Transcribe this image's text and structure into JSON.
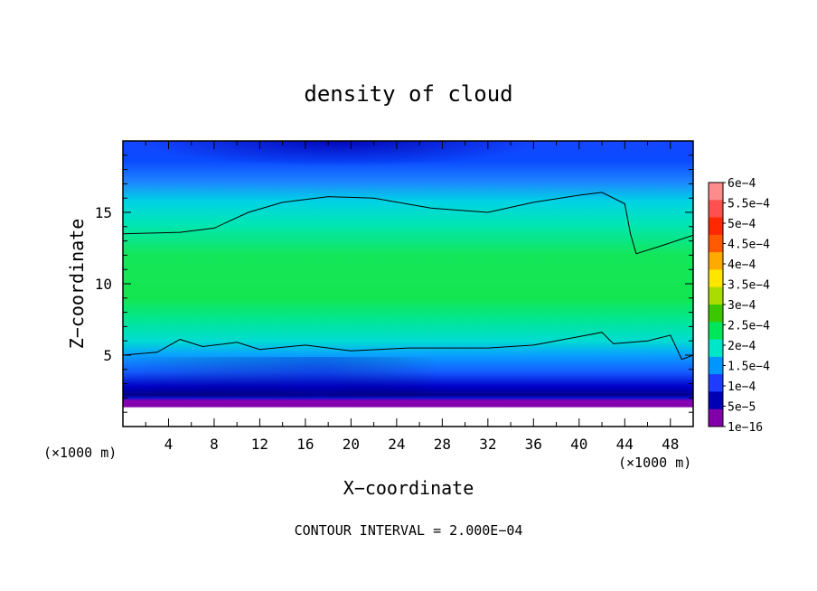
{
  "chart_data": {
    "type": "heatmap",
    "title": "density of cloud",
    "xlabel": "X−coordinate",
    "ylabel": "Z−coordinate",
    "x_unit_left": "(×1000 m)",
    "x_unit_right": "(×1000 m)",
    "footer": "CONTOUR INTERVAL = 2.000E−04",
    "xlim": [
      0,
      50
    ],
    "ylim": [
      0,
      20
    ],
    "x_ticks": [
      4,
      8,
      12,
      16,
      20,
      24,
      28,
      32,
      36,
      40,
      44,
      48
    ],
    "x_tick_labels": [
      "4",
      "8",
      "12",
      "16",
      "20",
      "24",
      "28",
      "32",
      "36",
      "40",
      "44",
      "48"
    ],
    "y_ticks": [
      5,
      10,
      15
    ],
    "y_tick_labels": [
      "5",
      "10",
      "15"
    ],
    "colorbar": {
      "labels": [
        "6e−4",
        "5.5e−4",
        "5e−4",
        "4.5e−4",
        "4e−4",
        "3.5e−4",
        "3e−4",
        "2.5e−4",
        "2e−4",
        "1.5e−4",
        "1e−4",
        "5e−5",
        "1e−16"
      ],
      "colors": [
        "#ff8c8c",
        "#ff5050",
        "#ff2800",
        "#ff5a00",
        "#ffaa00",
        "#ffe600",
        "#aadc00",
        "#3cc800",
        "#00e65a",
        "#00e6c8",
        "#0096ff",
        "#1e3cff",
        "#0000b4",
        "#8200aa"
      ]
    },
    "contour_upper_z_at_x": [
      [
        0,
        13.5
      ],
      [
        5,
        13.6
      ],
      [
        8,
        13.9
      ],
      [
        11,
        15.0
      ],
      [
        14,
        15.7
      ],
      [
        18,
        16.1
      ],
      [
        22,
        16.0
      ],
      [
        27,
        15.3
      ],
      [
        32,
        15.0
      ],
      [
        36,
        15.7
      ],
      [
        40,
        16.2
      ],
      [
        42,
        16.4
      ],
      [
        44,
        15.6
      ],
      [
        44.5,
        13.5
      ],
      [
        45,
        12.1
      ],
      [
        47,
        12.6
      ],
      [
        50,
        13.4
      ]
    ],
    "contour_lower_z_at_x": [
      [
        0,
        5.0
      ],
      [
        3,
        5.2
      ],
      [
        5,
        6.1
      ],
      [
        7,
        5.6
      ],
      [
        10,
        5.9
      ],
      [
        12,
        5.4
      ],
      [
        16,
        5.7
      ],
      [
        20,
        5.3
      ],
      [
        25,
        5.5
      ],
      [
        32,
        5.5
      ],
      [
        36,
        5.7
      ],
      [
        40,
        6.3
      ],
      [
        42,
        6.6
      ],
      [
        43,
        5.8
      ],
      [
        46,
        6.0
      ],
      [
        48,
        6.4
      ],
      [
        49,
        4.7
      ],
      [
        50,
        5.0
      ]
    ]
  }
}
